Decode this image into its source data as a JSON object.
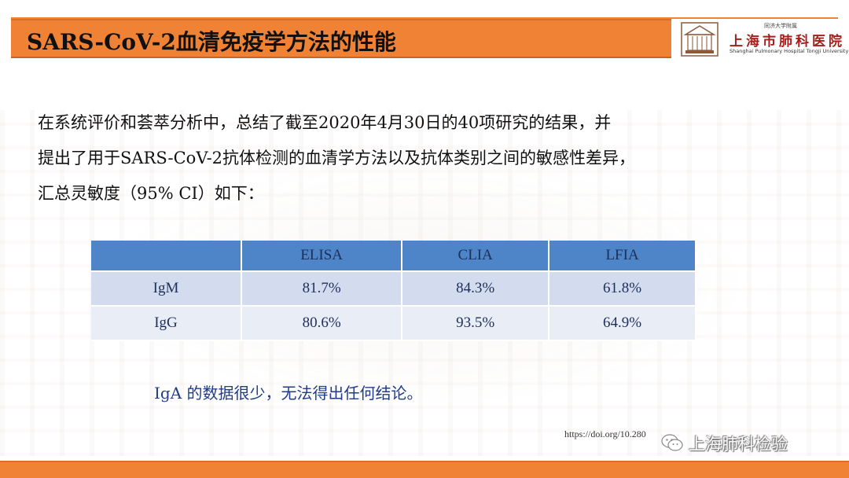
{
  "header": {
    "title": "SARS-CoV-2血清免疫学方法的性能"
  },
  "logo": {
    "small_text": "同济大学附属",
    "main_text": "上海市肺科医院",
    "english_text": "Shanghai Pulmonary Hospital Tongji University",
    "icon": "hospital-emblem-icon"
  },
  "intro": {
    "lines": [
      "在系统评价和荟萃分析中，总结了截至2020年4月30日的40项研究的结果，并",
      "提出了用于SARS-CoV-2抗体检测的血清学方法以及抗体类别之间的敏感性差异，",
      "汇总灵敏度（95% CI）如下："
    ]
  },
  "table": {
    "columns": [
      "",
      "ELISA",
      "CLIA",
      "LFIA"
    ],
    "rows": [
      {
        "label": "IgM",
        "values": [
          "81.7%",
          "84.3%",
          "61.8%"
        ]
      },
      {
        "label": "IgG",
        "values": [
          "80.6%",
          "93.5%",
          "64.9%"
        ]
      }
    ]
  },
  "note": "IgA 的数据很少，无法得出任何结论。",
  "citation": "https://doi.org/10.280",
  "watermark": {
    "icon": "wechat-icon",
    "name": "上海肺科检验"
  },
  "colors": {
    "accent": "#ef8234",
    "table_header": "#4e85c9",
    "table_row_1": "#d2dcee",
    "table_row_2": "#e8edf6",
    "note_text": "#1f3c88",
    "logo_red": "#a3201d"
  }
}
